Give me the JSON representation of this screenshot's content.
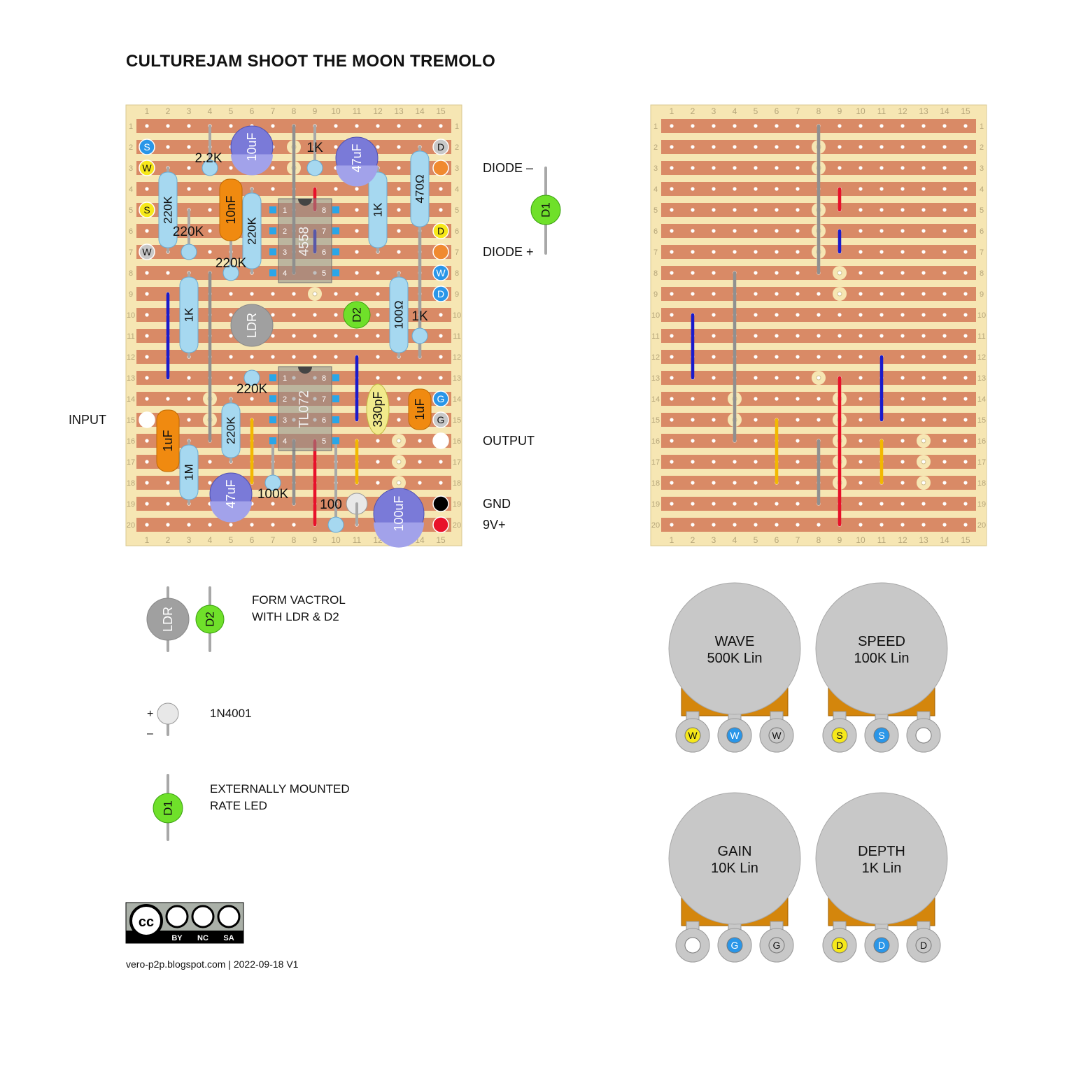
{
  "title": "CULTUREJAM SHOOT THE MOON TREMOLO",
  "board": {
    "columns": [
      "1",
      "2",
      "3",
      "4",
      "5",
      "6",
      "7",
      "8",
      "9",
      "10",
      "11",
      "12",
      "13",
      "14",
      "15"
    ],
    "rows": [
      "1",
      "2",
      "3",
      "4",
      "5",
      "6",
      "7",
      "8",
      "9",
      "10",
      "11",
      "12",
      "13",
      "14",
      "15",
      "16",
      "17",
      "18",
      "19",
      "20"
    ]
  },
  "connections": {
    "input": "INPUT",
    "output": "OUTPUT",
    "gnd": "GND",
    "v9": "9V+",
    "diode_minus": "DIODE –",
    "diode_plus": "DIODE +"
  },
  "components": {
    "c10uf": "10uF",
    "c47uf_top": "47uF",
    "c47uf_bot": "47uF",
    "c100uf": "100uF",
    "c10nf": "10nF",
    "c1uf_in": "1uF",
    "c1uf_out": "1uF",
    "c330pf": "330pF",
    "r2k2": "2.2K",
    "r1k_top": "1K",
    "r220k_a": "220K",
    "r220k_b": "220K",
    "r220k_c": "220K",
    "r220k_d": "220K",
    "r220k_e": "220K",
    "r1k_vert": "1K",
    "r470": "470Ω",
    "r1k_left": "1K",
    "r100ohm": "100Ω",
    "r1k_right": "1K",
    "r1m": "1M",
    "r100k": "100K",
    "r100": "100",
    "ic1": "4558",
    "ic2": "TL072",
    "ldr": "LDR",
    "d2": "D2",
    "d1": "D1"
  },
  "ic_pins": [
    "1",
    "2",
    "3",
    "4",
    "5",
    "6",
    "7",
    "8"
  ],
  "pads": {
    "S": "S",
    "W": "W",
    "D": "D",
    "G": "G"
  },
  "legend": {
    "vactrol_line1": "FORM VACTROL",
    "vactrol_line2": "WITH LDR & D2",
    "ldr": "LDR",
    "d2": "D2",
    "diode_name": "1N4001",
    "plus": "+",
    "minus": "–",
    "led_line1": "EXTERNALLY MOUNTED",
    "led_line2": "RATE LED",
    "d1": "D1"
  },
  "pots": [
    {
      "name": "WAVE",
      "value": "500K Lin",
      "lugs": [
        "W",
        "W",
        "W"
      ]
    },
    {
      "name": "SPEED",
      "value": "100K Lin",
      "lugs": [
        "S",
        "S",
        ""
      ]
    },
    {
      "name": "GAIN",
      "value": "10K Lin",
      "lugs": [
        "",
        "G",
        "G"
      ]
    },
    {
      "name": "DEPTH",
      "value": "1K Lin",
      "lugs": [
        "D",
        "D",
        "D"
      ]
    }
  ],
  "license": {
    "cc": "cc",
    "by": "BY",
    "nc": "NC",
    "sa": "SA"
  },
  "footer": "vero-p2p.blogspot.com  |  2022-09-18 V1",
  "colors": {
    "strip": "#d98a66",
    "board": "#f6e6b3",
    "resistor": "#a6d8f0",
    "electrolytic": "#7a7ad8",
    "film_cap": "#f08a10",
    "ceramic": "#f1ea8c",
    "led": "#6fe02a",
    "ldr": "#a0a0a0",
    "pot": "#c8c8c8",
    "pot_body": "#d4860c",
    "blue_pad": "#2a96e8",
    "yellow_pad": "#f6e81a"
  }
}
